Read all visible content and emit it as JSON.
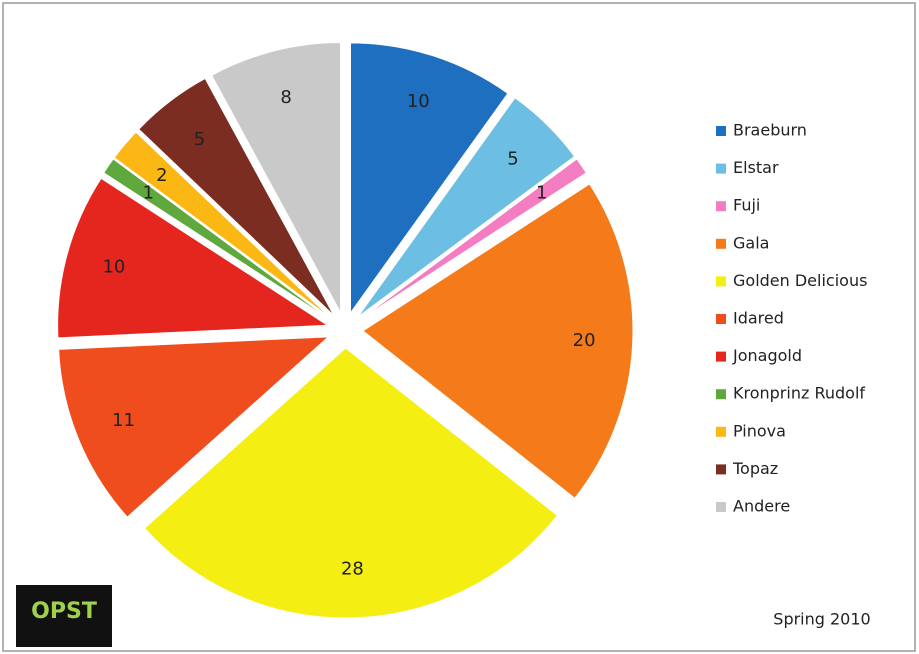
{
  "chart_data": {
    "type": "pie",
    "categories": [
      "Braeburn",
      "Elstar",
      "Fuji",
      "Gala",
      "Golden Delicious",
      "Idared",
      "Jonagold",
      "Kronprinz Rudolf",
      "Pinova",
      "Topaz",
      "Andere"
    ],
    "values": [
      10,
      5,
      1,
      20,
      28,
      11,
      10,
      1,
      2,
      5,
      8
    ],
    "colors": [
      "#1f6fc0",
      "#6cbfe2",
      "#f47cc0",
      "#f47a1a",
      "#f4ee12",
      "#ef4d1e",
      "#e5261f",
      "#5ea83e",
      "#fbb714",
      "#7a2d20",
      "#c9c9c9"
    ],
    "annotation": "Spring 2010",
    "logo": "OPST",
    "legend": "right"
  }
}
